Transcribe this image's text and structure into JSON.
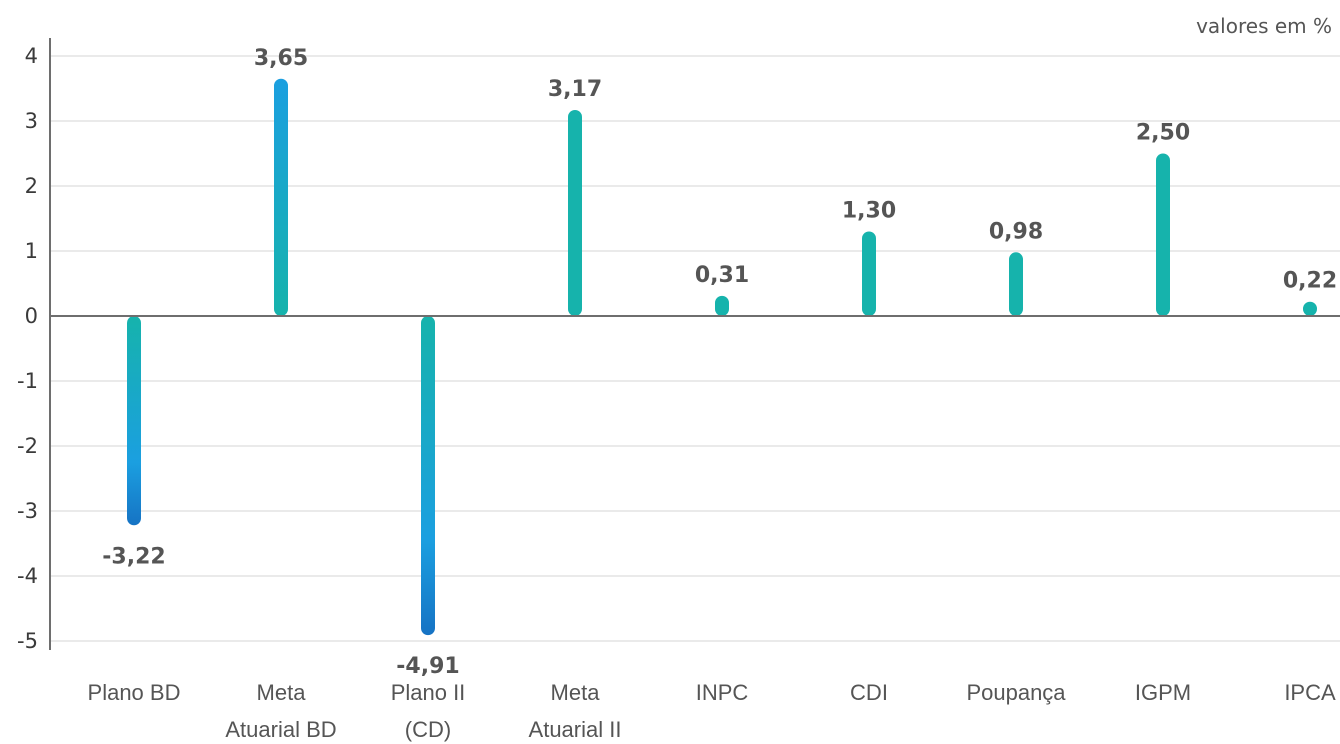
{
  "unit_label": "valores em %",
  "chart_data": {
    "type": "bar",
    "categories": [
      "Plano BD",
      "Meta Atuarial BD",
      "Plano II (CD)",
      "Meta Atuarial II",
      "INPC",
      "CDI",
      "Poupança",
      "IGPM",
      "IPCA"
    ],
    "category_lines": [
      [
        "Plano BD"
      ],
      [
        "Meta",
        "Atuarial BD"
      ],
      [
        "Plano II",
        "(CD)"
      ],
      [
        "Meta",
        "Atuarial II"
      ],
      [
        "INPC"
      ],
      [
        "CDI"
      ],
      [
        "Poupança"
      ],
      [
        "IGPM"
      ],
      [
        "IPCA"
      ]
    ],
    "values": [
      -3.22,
      3.65,
      -4.91,
      3.17,
      0.31,
      1.3,
      0.98,
      2.5,
      0.22
    ],
    "value_labels": [
      "-3,22",
      "3,65",
      "-4,91",
      "3,17",
      "0,31",
      "1,30",
      "0,98",
      "2,50",
      "0,22"
    ],
    "yticks": [
      4,
      3,
      2,
      1,
      0,
      -1,
      -2,
      -3,
      -4,
      -5
    ],
    "ylim": [
      -5,
      4
    ],
    "grid": true,
    "colors": {
      "teal": "#16b3ac",
      "blue": "#1b9fe0",
      "dark_blue": "#1673c4",
      "grid": "#e3e3e3",
      "axis": "#6e6e6e"
    }
  }
}
